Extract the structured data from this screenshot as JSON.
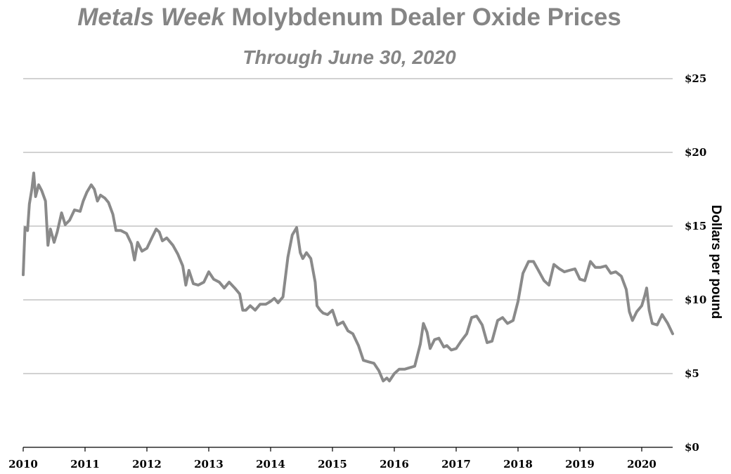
{
  "colors": {
    "series": "#8a8a8a",
    "grid": "#a6a6a6",
    "axis": "#000000",
    "title": "#858585"
  },
  "chart_data": {
    "type": "line",
    "title_italic": "Metals Week",
    "title_rest": "Molybdenum Dealer Oxide Prices",
    "subtitle": "Through June 30, 2020",
    "xlabel": "",
    "ylabel": "Dollars per pound",
    "xlim": [
      2010.0,
      2020.5
    ],
    "ylim": [
      0,
      25
    ],
    "x_ticks": [
      {
        "value": 2010,
        "label": "2010"
      },
      {
        "value": 2011,
        "label": "2011"
      },
      {
        "value": 2012,
        "label": "2012"
      },
      {
        "value": 2013,
        "label": "2013"
      },
      {
        "value": 2014,
        "label": "2014"
      },
      {
        "value": 2015,
        "label": "2015"
      },
      {
        "value": 2016,
        "label": "2016"
      },
      {
        "value": 2017,
        "label": "2017"
      },
      {
        "value": 2018,
        "label": "2018"
      },
      {
        "value": 2019,
        "label": "2019"
      },
      {
        "value": 2020,
        "label": "2020"
      }
    ],
    "y_ticks": [
      {
        "value": 0,
        "label": "$0"
      },
      {
        "value": 5,
        "label": "$5"
      },
      {
        "value": 10,
        "label": "$10"
      },
      {
        "value": 15,
        "label": "$15"
      },
      {
        "value": 20,
        "label": "$20"
      },
      {
        "value": 25,
        "label": "$25"
      }
    ],
    "y_axis_side": "right",
    "grid": "horizontal",
    "legend": "none",
    "series": [
      {
        "name": "",
        "points": [
          [
            2010.0,
            11.7
          ],
          [
            2010.03,
            14.9
          ],
          [
            2010.07,
            14.7
          ],
          [
            2010.1,
            16.5
          ],
          [
            2010.14,
            17.5
          ],
          [
            2010.17,
            18.6
          ],
          [
            2010.2,
            17.0
          ],
          [
            2010.25,
            17.8
          ],
          [
            2010.3,
            17.4
          ],
          [
            2010.36,
            16.7
          ],
          [
            2010.4,
            13.7
          ],
          [
            2010.44,
            14.8
          ],
          [
            2010.5,
            13.9
          ],
          [
            2010.55,
            14.6
          ],
          [
            2010.62,
            15.9
          ],
          [
            2010.68,
            15.1
          ],
          [
            2010.75,
            15.4
          ],
          [
            2010.83,
            16.1
          ],
          [
            2010.92,
            16.0
          ],
          [
            2010.97,
            16.7
          ],
          [
            2011.03,
            17.3
          ],
          [
            2011.1,
            17.8
          ],
          [
            2011.15,
            17.5
          ],
          [
            2011.2,
            16.7
          ],
          [
            2011.25,
            17.1
          ],
          [
            2011.32,
            16.9
          ],
          [
            2011.38,
            16.6
          ],
          [
            2011.45,
            15.8
          ],
          [
            2011.5,
            14.7
          ],
          [
            2011.58,
            14.7
          ],
          [
            2011.67,
            14.5
          ],
          [
            2011.75,
            13.8
          ],
          [
            2011.8,
            12.7
          ],
          [
            2011.85,
            13.9
          ],
          [
            2011.92,
            13.3
          ],
          [
            2012.0,
            13.5
          ],
          [
            2012.08,
            14.2
          ],
          [
            2012.15,
            14.8
          ],
          [
            2012.2,
            14.6
          ],
          [
            2012.25,
            14.0
          ],
          [
            2012.32,
            14.2
          ],
          [
            2012.42,
            13.7
          ],
          [
            2012.5,
            13.1
          ],
          [
            2012.58,
            12.3
          ],
          [
            2012.63,
            11.0
          ],
          [
            2012.68,
            12.0
          ],
          [
            2012.75,
            11.1
          ],
          [
            2012.83,
            11.0
          ],
          [
            2012.92,
            11.2
          ],
          [
            2013.0,
            11.9
          ],
          [
            2013.08,
            11.4
          ],
          [
            2013.17,
            11.2
          ],
          [
            2013.25,
            10.8
          ],
          [
            2013.33,
            11.2
          ],
          [
            2013.42,
            10.8
          ],
          [
            2013.5,
            10.4
          ],
          [
            2013.55,
            9.3
          ],
          [
            2013.6,
            9.3
          ],
          [
            2013.67,
            9.6
          ],
          [
            2013.75,
            9.3
          ],
          [
            2013.83,
            9.7
          ],
          [
            2013.92,
            9.7
          ],
          [
            2014.0,
            9.9
          ],
          [
            2014.06,
            10.1
          ],
          [
            2014.12,
            9.8
          ],
          [
            2014.2,
            10.2
          ],
          [
            2014.28,
            12.9
          ],
          [
            2014.35,
            14.4
          ],
          [
            2014.42,
            14.9
          ],
          [
            2014.48,
            13.2
          ],
          [
            2014.52,
            12.8
          ],
          [
            2014.58,
            13.2
          ],
          [
            2014.65,
            12.8
          ],
          [
            2014.72,
            11.2
          ],
          [
            2014.75,
            9.6
          ],
          [
            2014.8,
            9.3
          ],
          [
            2014.85,
            9.1
          ],
          [
            2014.92,
            9.0
          ],
          [
            2015.0,
            9.3
          ],
          [
            2015.08,
            8.3
          ],
          [
            2015.17,
            8.5
          ],
          [
            2015.25,
            7.9
          ],
          [
            2015.33,
            7.7
          ],
          [
            2015.42,
            6.9
          ],
          [
            2015.5,
            5.9
          ],
          [
            2015.58,
            5.8
          ],
          [
            2015.67,
            5.7
          ],
          [
            2015.75,
            5.2
          ],
          [
            2015.82,
            4.5
          ],
          [
            2015.88,
            4.7
          ],
          [
            2015.92,
            4.5
          ],
          [
            2016.0,
            5.0
          ],
          [
            2016.08,
            5.3
          ],
          [
            2016.17,
            5.3
          ],
          [
            2016.25,
            5.4
          ],
          [
            2016.33,
            5.5
          ],
          [
            2016.42,
            7.0
          ],
          [
            2016.47,
            8.4
          ],
          [
            2016.53,
            7.8
          ],
          [
            2016.58,
            6.7
          ],
          [
            2016.65,
            7.3
          ],
          [
            2016.72,
            7.4
          ],
          [
            2016.8,
            6.8
          ],
          [
            2016.85,
            6.9
          ],
          [
            2016.92,
            6.6
          ],
          [
            2017.0,
            6.7
          ],
          [
            2017.08,
            7.2
          ],
          [
            2017.17,
            7.7
          ],
          [
            2017.25,
            8.8
          ],
          [
            2017.33,
            8.9
          ],
          [
            2017.42,
            8.3
          ],
          [
            2017.5,
            7.1
          ],
          [
            2017.58,
            7.2
          ],
          [
            2017.67,
            8.6
          ],
          [
            2017.75,
            8.8
          ],
          [
            2017.83,
            8.4
          ],
          [
            2017.92,
            8.6
          ],
          [
            2018.0,
            9.9
          ],
          [
            2018.08,
            11.8
          ],
          [
            2018.17,
            12.6
          ],
          [
            2018.25,
            12.6
          ],
          [
            2018.33,
            12.0
          ],
          [
            2018.42,
            11.3
          ],
          [
            2018.5,
            11.0
          ],
          [
            2018.58,
            12.4
          ],
          [
            2018.67,
            12.1
          ],
          [
            2018.75,
            11.9
          ],
          [
            2018.83,
            12.0
          ],
          [
            2018.92,
            12.1
          ],
          [
            2019.0,
            11.4
          ],
          [
            2019.08,
            11.3
          ],
          [
            2019.17,
            12.6
          ],
          [
            2019.25,
            12.2
          ],
          [
            2019.33,
            12.2
          ],
          [
            2019.42,
            12.3
          ],
          [
            2019.5,
            11.8
          ],
          [
            2019.58,
            11.9
          ],
          [
            2019.67,
            11.6
          ],
          [
            2019.75,
            10.7
          ],
          [
            2019.8,
            9.2
          ],
          [
            2019.85,
            8.6
          ],
          [
            2019.92,
            9.2
          ],
          [
            2020.0,
            9.6
          ],
          [
            2020.05,
            10.3
          ],
          [
            2020.08,
            10.8
          ],
          [
            2020.12,
            9.3
          ],
          [
            2020.17,
            8.4
          ],
          [
            2020.25,
            8.3
          ],
          [
            2020.33,
            9.0
          ],
          [
            2020.42,
            8.4
          ],
          [
            2020.5,
            7.7
          ]
        ]
      }
    ]
  }
}
